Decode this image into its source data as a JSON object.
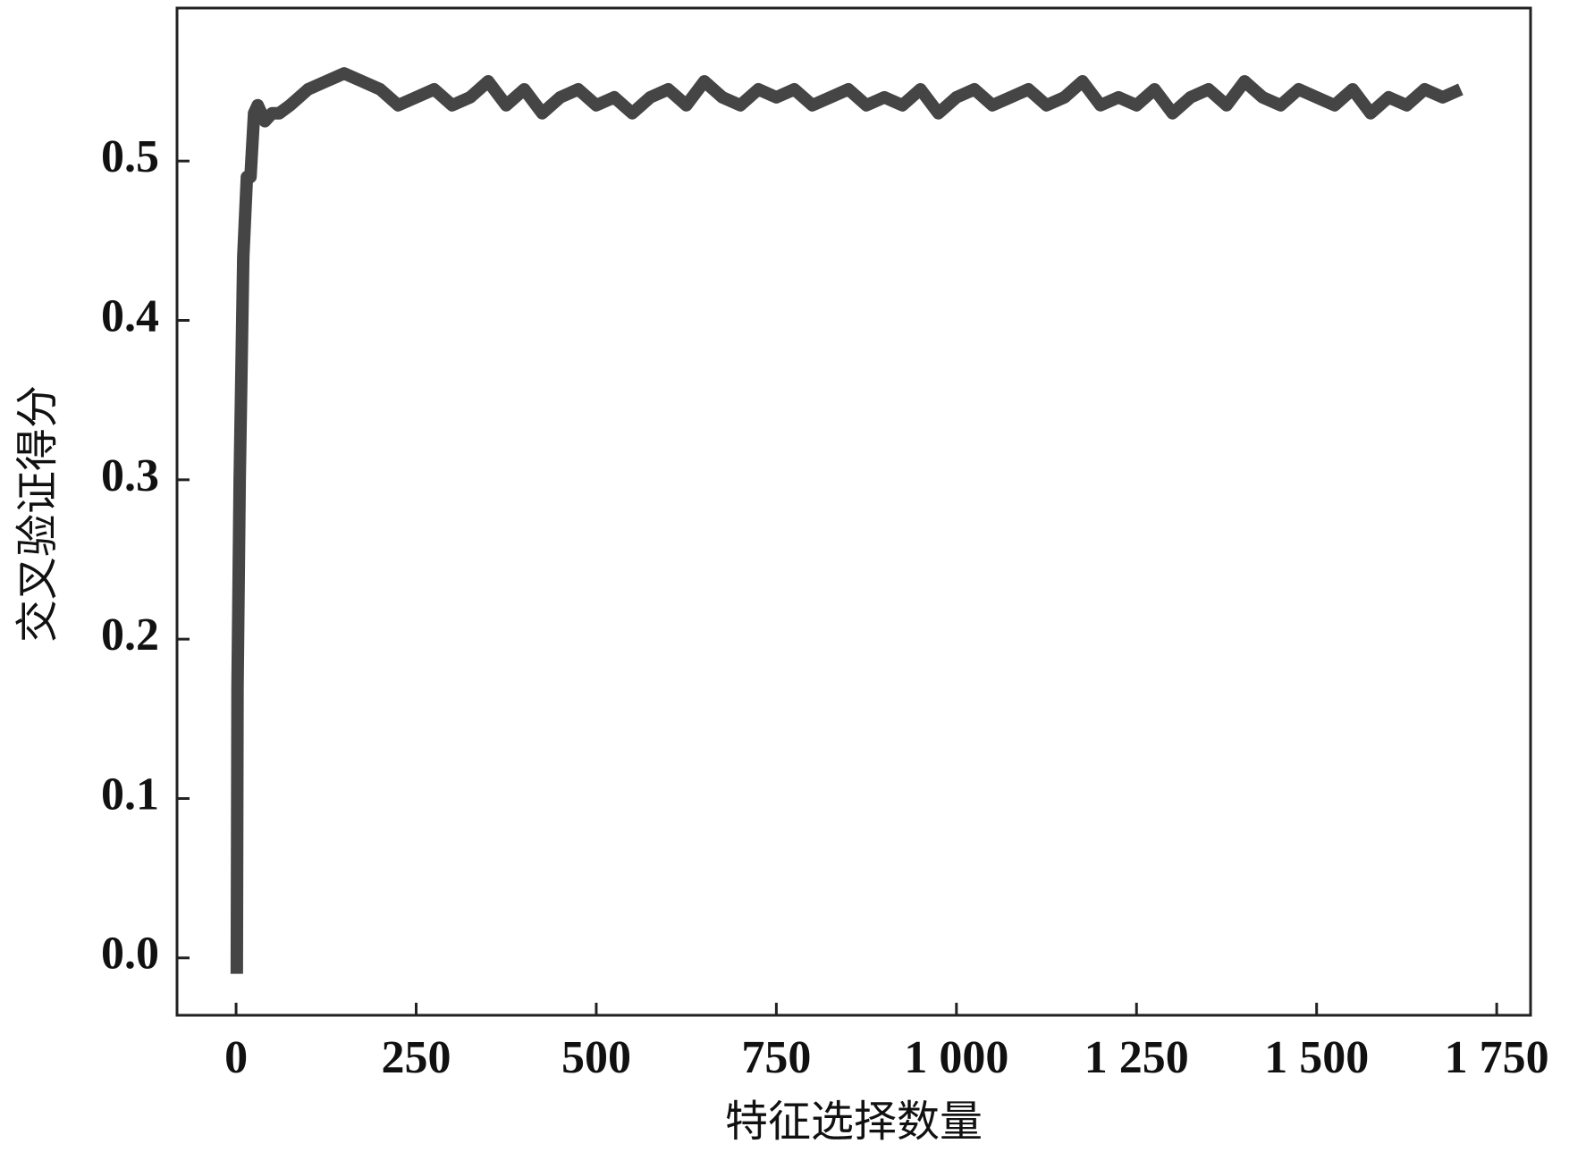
{
  "chart_data": {
    "type": "line",
    "x_label": "特征选择数量",
    "y_label": "交叉验证得分",
    "color": "#454545",
    "x": [
      1,
      2,
      5,
      10,
      15,
      20,
      25,
      30,
      40,
      50,
      60,
      75,
      100,
      125,
      150,
      175,
      200,
      225,
      250,
      275,
      300,
      325,
      350,
      375,
      400,
      425,
      450,
      475,
      500,
      525,
      550,
      575,
      600,
      625,
      650,
      675,
      700,
      725,
      750,
      775,
      800,
      825,
      850,
      875,
      900,
      925,
      950,
      975,
      1000,
      1025,
      1050,
      1075,
      1100,
      1125,
      1150,
      1175,
      1200,
      1225,
      1250,
      1275,
      1300,
      1325,
      1350,
      1375,
      1400,
      1425,
      1450,
      1475,
      1500,
      1525,
      1550,
      1575,
      1600,
      1625,
      1650,
      1675,
      1700
    ],
    "values": [
      -0.01,
      0.17,
      0.3,
      0.44,
      0.49,
      0.49,
      0.53,
      0.535,
      0.525,
      0.53,
      0.53,
      0.535,
      0.545,
      0.55,
      0.555,
      0.55,
      0.545,
      0.535,
      0.54,
      0.545,
      0.535,
      0.54,
      0.55,
      0.535,
      0.545,
      0.53,
      0.54,
      0.545,
      0.535,
      0.54,
      0.53,
      0.54,
      0.545,
      0.535,
      0.55,
      0.54,
      0.535,
      0.545,
      0.54,
      0.545,
      0.535,
      0.54,
      0.545,
      0.535,
      0.54,
      0.535,
      0.545,
      0.53,
      0.54,
      0.545,
      0.535,
      0.54,
      0.545,
      0.535,
      0.54,
      0.55,
      0.535,
      0.54,
      0.535,
      0.545,
      0.53,
      0.54,
      0.545,
      0.535,
      0.55,
      0.54,
      0.535,
      0.545,
      0.54,
      0.535,
      0.545,
      0.53,
      0.54,
      0.535,
      0.545,
      0.54,
      0.545
    ],
    "xlim": [
      -82,
      1797
    ],
    "ylim": [
      -0.036,
      0.596
    ],
    "xticks": [
      0,
      250,
      500,
      750,
      {
        "value": 1000,
        "label": "1 000"
      },
      {
        "value": 1250,
        "label": "1 250"
      },
      {
        "value": 1500,
        "label": "1 500"
      },
      {
        "value": 1750,
        "label": "1 750"
      }
    ],
    "yticks": [
      {
        "value": 0,
        "label": "0.0"
      },
      0.1,
      0.2,
      0.3,
      0.4,
      0.5
    ]
  }
}
